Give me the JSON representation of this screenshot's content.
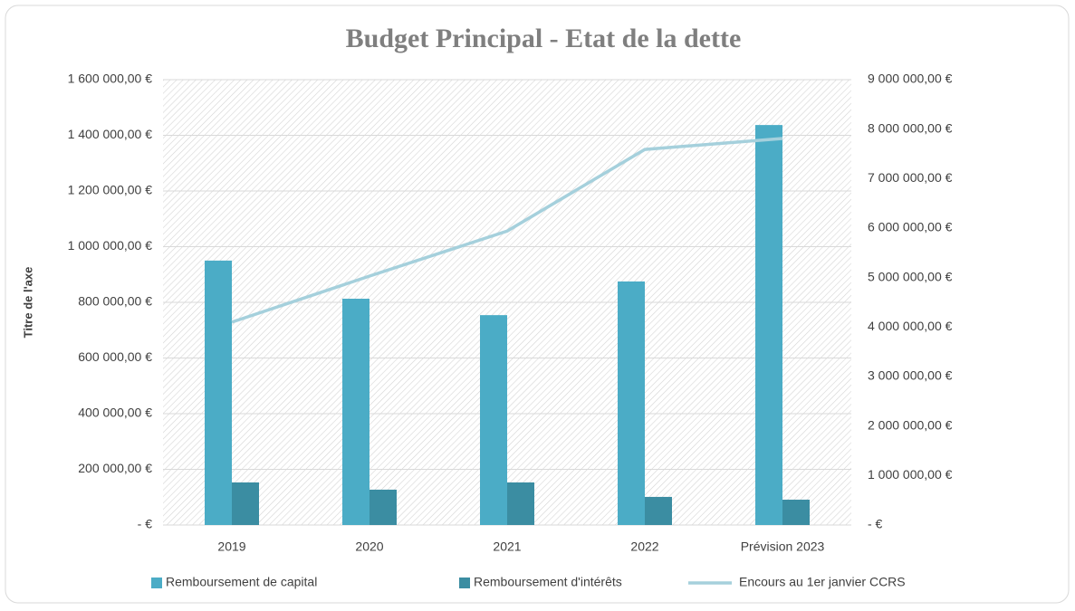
{
  "chart_data": {
    "type": "bar_line",
    "title": "Budget Principal - Etat de la dette",
    "y_label": "Titre de l'axe",
    "categories": [
      "2019",
      "2020",
      "2021",
      "2022",
      "Prévision 2023"
    ],
    "series": [
      {
        "name": "Remboursement de capital",
        "color": "#4bacc6",
        "type": "bar",
        "values": [
          950000,
          813000,
          754000,
          875000,
          1437000
        ]
      },
      {
        "name": "Remboursement d'intérêts",
        "color": "#3b8da2",
        "type": "bar",
        "values": [
          153000,
          127000,
          153000,
          101000,
          91000
        ]
      },
      {
        "name": "Encours au 1er janvier CCRS",
        "color": "#a5d0dc",
        "type": "line",
        "axis": "y2",
        "values": [
          4100000,
          5030000,
          5940000,
          7590000,
          7810000
        ]
      }
    ],
    "ylim": [
      0,
      1600000
    ],
    "yticks": [
      {
        "value": 0,
        "label": "-   €"
      },
      {
        "value": 200000,
        "label": "200 000,00 €"
      },
      {
        "value": 400000,
        "label": "400 000,00 €"
      },
      {
        "value": 600000,
        "label": "600 000,00 €"
      },
      {
        "value": 800000,
        "label": "800 000,00 €"
      },
      {
        "value": 1000000,
        "label": "1 000 000,00 €"
      },
      {
        "value": 1200000,
        "label": "1 200 000,00 €"
      },
      {
        "value": 1400000,
        "label": "1 400 000,00 €"
      },
      {
        "value": 1600000,
        "label": "1 600 000,00 €"
      }
    ],
    "y2lim": [
      0,
      9000000
    ],
    "y2ticks": [
      {
        "value": 0,
        "label": "-   €"
      },
      {
        "value": 1000000,
        "label": "1 000 000,00 €"
      },
      {
        "value": 2000000,
        "label": "2 000 000,00 €"
      },
      {
        "value": 3000000,
        "label": "3 000 000,00 €"
      },
      {
        "value": 4000000,
        "label": "4 000 000,00 €"
      },
      {
        "value": 5000000,
        "label": "5 000 000,00 €"
      },
      {
        "value": 6000000,
        "label": "6 000 000,00 €"
      },
      {
        "value": 7000000,
        "label": "7 000 000,00 €"
      },
      {
        "value": 8000000,
        "label": "8 000 000,00 €"
      },
      {
        "value": 9000000,
        "label": "9 000 000,00 €"
      }
    ],
    "grid": true,
    "legend": "bottom"
  }
}
